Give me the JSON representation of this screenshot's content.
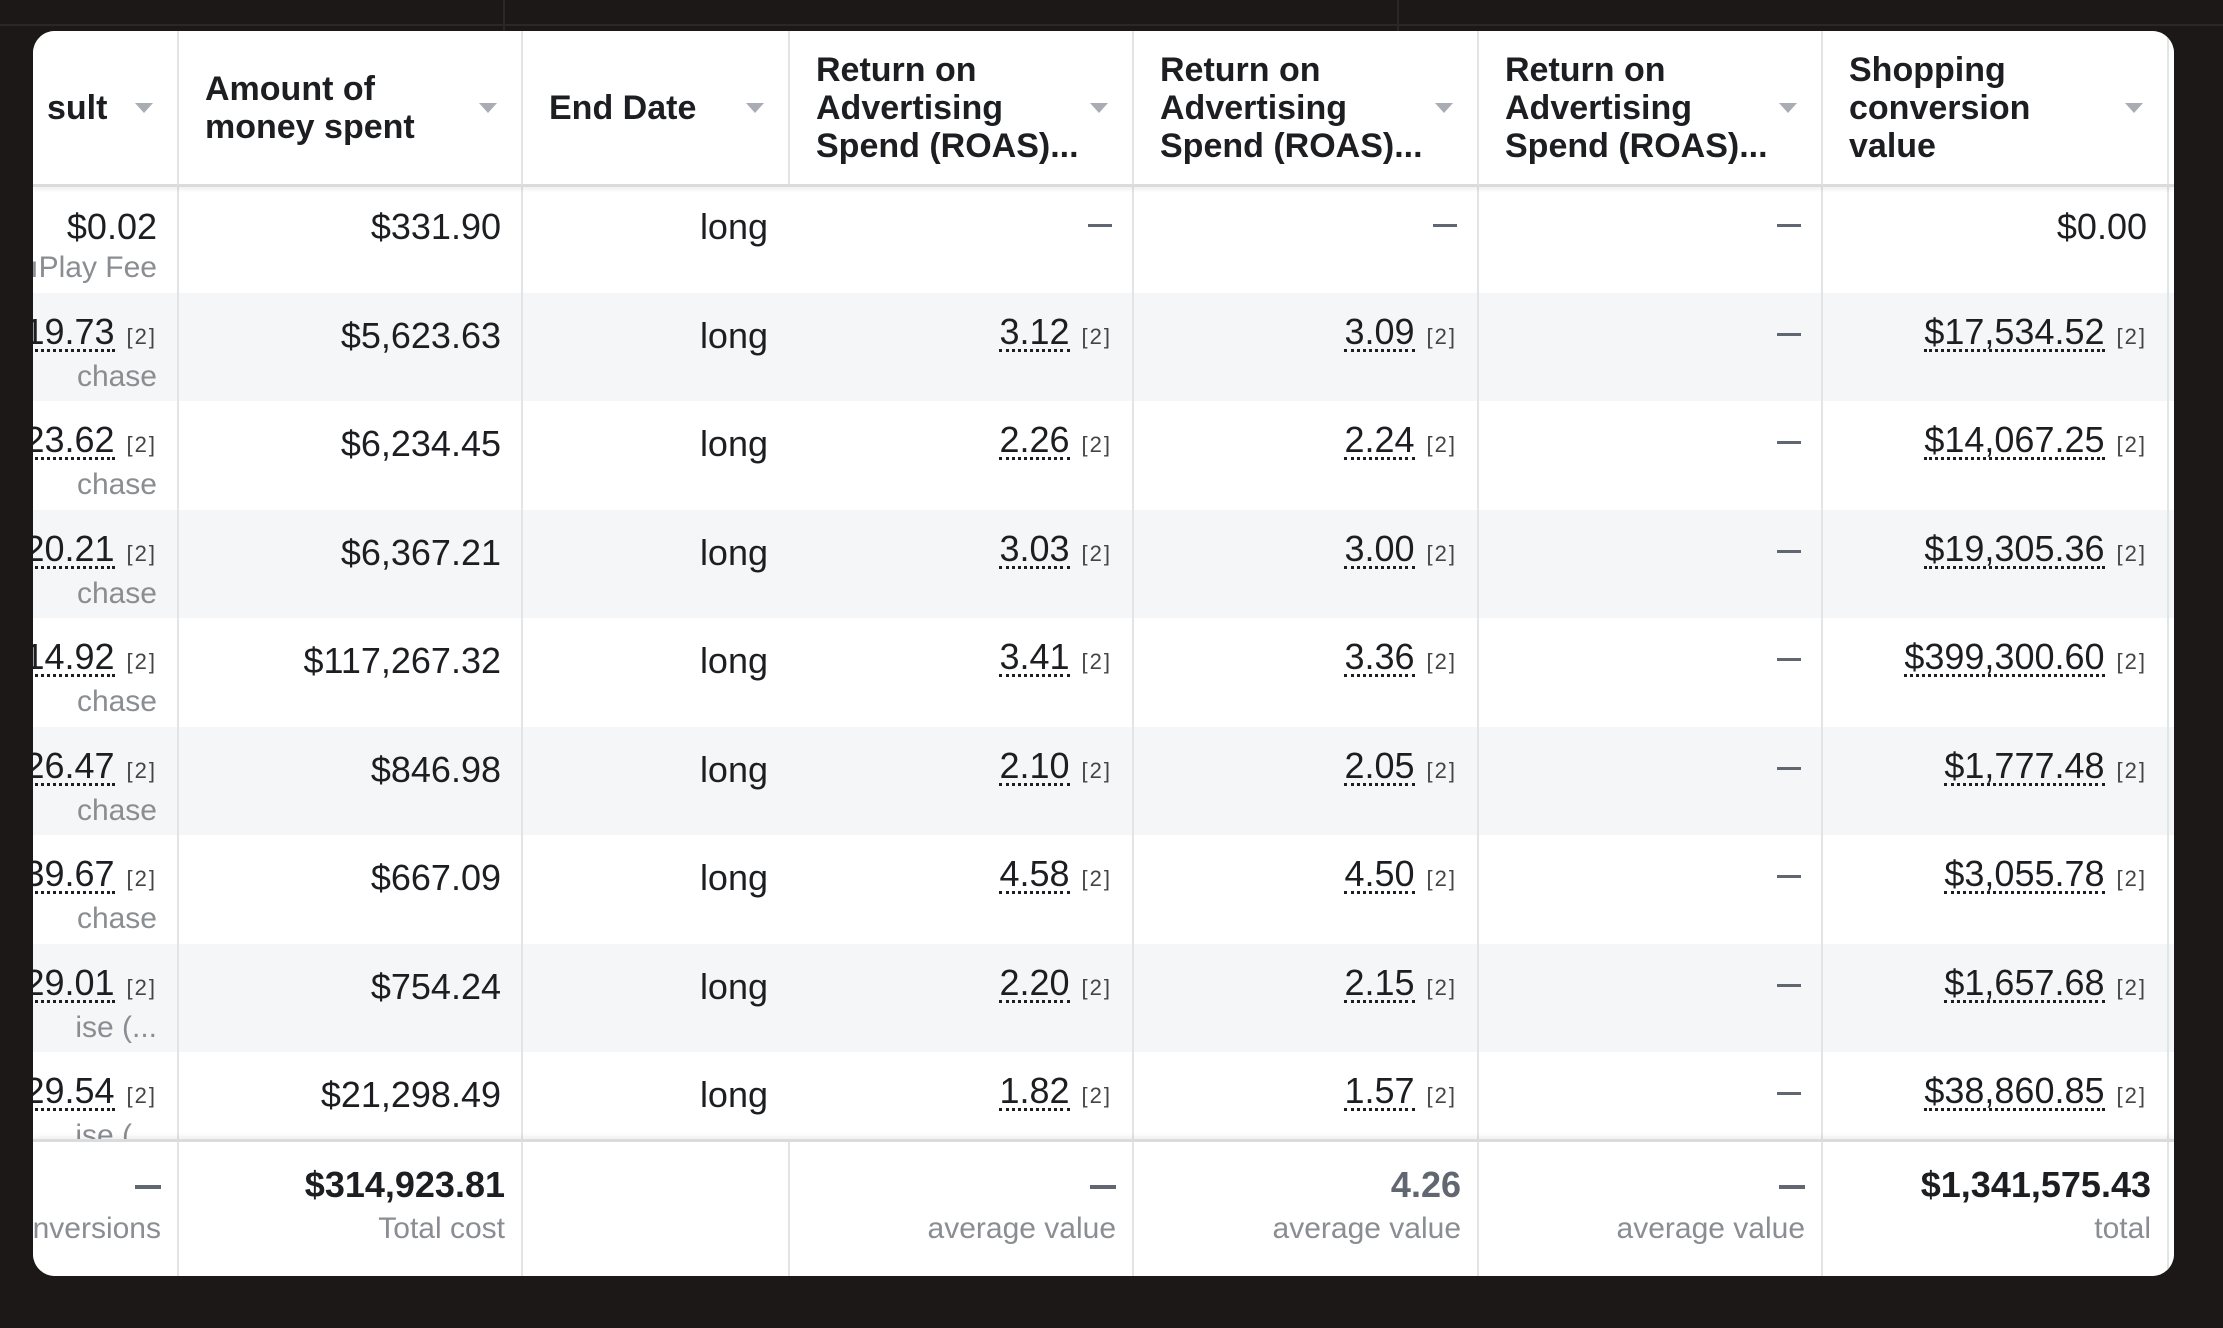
{
  "columns": [
    {
      "label": "sult"
    },
    {
      "label": "Amount of money spent"
    },
    {
      "label": "End Date"
    },
    {
      "label": "Return on Advertising Spend (ROAS)..."
    },
    {
      "label": "Return on Advertising Spend (ROAS)..."
    },
    {
      "label": "Return on Advertising Spend (ROAS)..."
    },
    {
      "label": "Shopping conversion value"
    }
  ],
  "rows": [
    {
      "result": "$0.02",
      "result_fn": "",
      "result_sub": "ıPlay Fee",
      "spent": "$331.90",
      "end": "long",
      "roas1": "—",
      "roas1_fn": "",
      "roas2": "—",
      "roas2_fn": "",
      "roas3": "—",
      "value": "$0.00",
      "value_fn": ""
    },
    {
      "result": "19.73",
      "result_fn": "[2]",
      "result_sub": "chase",
      "spent": "$5,623.63",
      "end": "long",
      "roas1": "3.12",
      "roas1_fn": "[2]",
      "roas2": "3.09",
      "roas2_fn": "[2]",
      "roas3": "—",
      "value": "$17,534.52",
      "value_fn": "[2]"
    },
    {
      "result": "23.62",
      "result_fn": "[2]",
      "result_sub": "chase",
      "spent": "$6,234.45",
      "end": "long",
      "roas1": "2.26",
      "roas1_fn": "[2]",
      "roas2": "2.24",
      "roas2_fn": "[2]",
      "roas3": "—",
      "value": "$14,067.25",
      "value_fn": "[2]"
    },
    {
      "result": "20.21",
      "result_fn": "[2]",
      "result_sub": "chase",
      "spent": "$6,367.21",
      "end": "long",
      "roas1": "3.03",
      "roas1_fn": "[2]",
      "roas2": "3.00",
      "roas2_fn": "[2]",
      "roas3": "—",
      "value": "$19,305.36",
      "value_fn": "[2]"
    },
    {
      "result": "14.92",
      "result_fn": "[2]",
      "result_sub": "chase",
      "spent": "$117,267.32",
      "end": "long",
      "roas1": "3.41",
      "roas1_fn": "[2]",
      "roas2": "3.36",
      "roas2_fn": "[2]",
      "roas3": "—",
      "value": "$399,300.60",
      "value_fn": "[2]"
    },
    {
      "result": "26.47",
      "result_fn": "[2]",
      "result_sub": "chase",
      "spent": "$846.98",
      "end": "long",
      "roas1": "2.10",
      "roas1_fn": "[2]",
      "roas2": "2.05",
      "roas2_fn": "[2]",
      "roas3": "—",
      "value": "$1,777.48",
      "value_fn": "[2]"
    },
    {
      "result": "39.67",
      "result_fn": "[2]",
      "result_sub": "chase",
      "spent": "$667.09",
      "end": "long",
      "roas1": "4.58",
      "roas1_fn": "[2]",
      "roas2": "4.50",
      "roas2_fn": "[2]",
      "roas3": "—",
      "value": "$3,055.78",
      "value_fn": "[2]"
    },
    {
      "result": "29.01",
      "result_fn": "[2]",
      "result_sub": "ise (...",
      "spent": "$754.24",
      "end": "long",
      "roas1": "2.20",
      "roas1_fn": "[2]",
      "roas2": "2.15",
      "roas2_fn": "[2]",
      "roas3": "—",
      "value": "$1,657.68",
      "value_fn": "[2]"
    },
    {
      "result": "29.54",
      "result_fn": "[2]",
      "result_sub": "ise (...",
      "spent": "$21,298.49",
      "end": "long",
      "roas1": "1.82",
      "roas1_fn": "[2]",
      "roas2": "1.57",
      "roas2_fn": "[2]",
      "roas3": "—",
      "value": "$38,860.85",
      "value_fn": "[2]"
    }
  ],
  "footer": [
    {
      "value": "—",
      "label": "nversions"
    },
    {
      "value": "$314,923.81",
      "label": "Total cost"
    },
    {
      "value": "",
      "label": ""
    },
    {
      "value": "—",
      "label": "average value"
    },
    {
      "value": "4.26",
      "label": "average value"
    },
    {
      "value": "—",
      "label": "average value"
    },
    {
      "value": "$1,341,575.43",
      "label": "total"
    }
  ]
}
